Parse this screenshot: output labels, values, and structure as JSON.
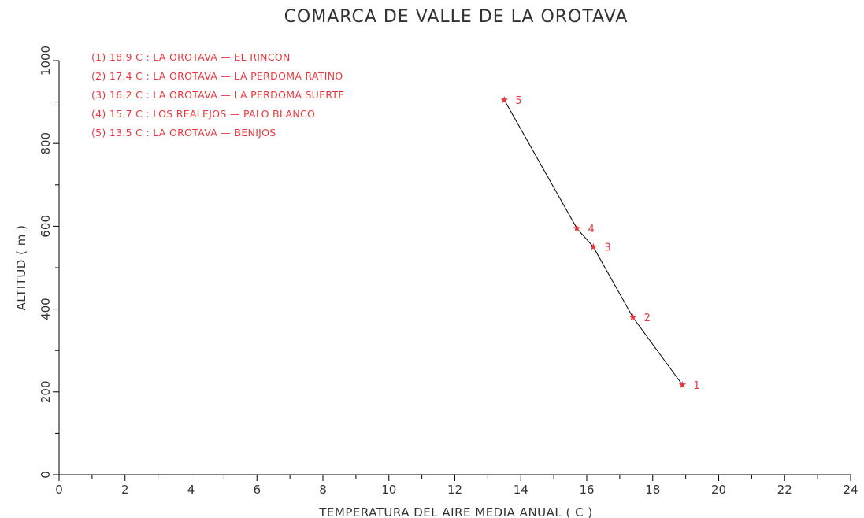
{
  "chart_data": {
    "type": "line",
    "title": "COMARCA DE VALLE DE LA OROTAVA",
    "xlabel": "TEMPERATURA DEL AIRE MEDIA ANUAL ( C )",
    "ylabel": "ALTITUD ( m )",
    "xlim": [
      0,
      24
    ],
    "ylim": [
      0,
      1000
    ],
    "x_ticks": [
      "0",
      "2",
      "4",
      "6",
      "8",
      "10",
      "12",
      "14",
      "16",
      "18",
      "20",
      "22",
      "24"
    ],
    "y_ticks": [
      "0",
      "200",
      "400",
      "600",
      "800",
      "1000"
    ],
    "grid": false,
    "legend_position": "top-left",
    "line_color": "#000000",
    "marker_color": "#e8383d",
    "points": [
      {
        "label": "1",
        "x": 18.9,
        "y": 217
      },
      {
        "label": "2",
        "x": 17.4,
        "y": 380
      },
      {
        "label": "3",
        "x": 16.2,
        "y": 550
      },
      {
        "label": "4",
        "x": 15.7,
        "y": 595
      },
      {
        "label": "5",
        "x": 13.5,
        "y": 905
      }
    ],
    "legend": [
      "(1) 18.9  C : LA OROTAVA — EL RINCON",
      "(2) 17.4  C : LA OROTAVA — LA PERDOMA RATINO",
      "(3) 16.2  C : LA OROTAVA — LA PERDOMA SUERTE",
      "(4) 15.7  C : LOS REALEJOS — PALO BLANCO",
      "(5) 13.5  C : LA OROTAVA — BENIJOS"
    ]
  }
}
